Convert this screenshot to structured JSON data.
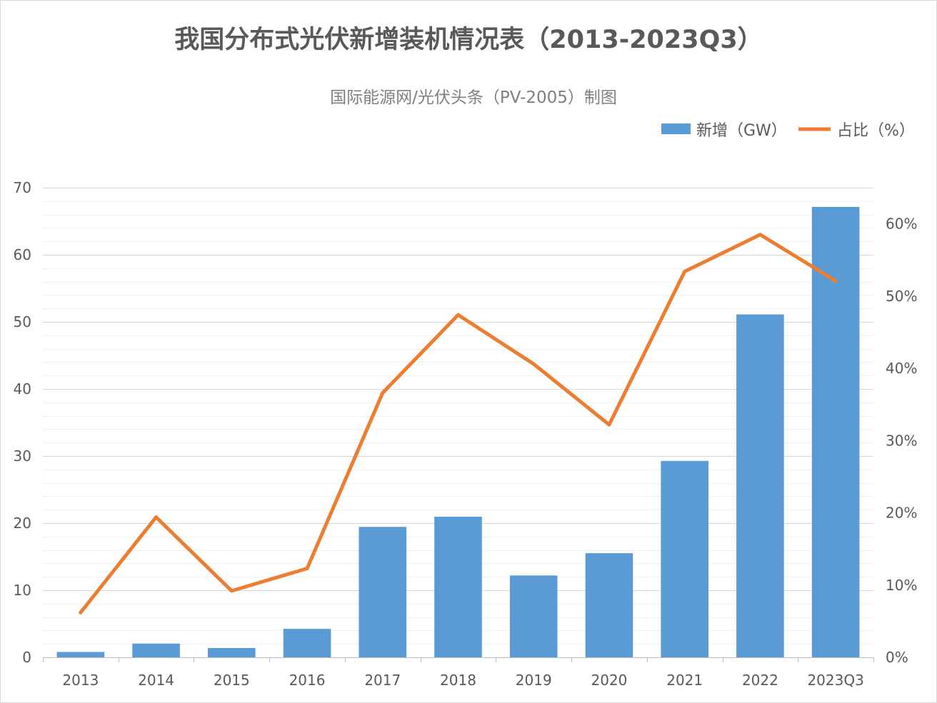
{
  "chart_data": {
    "type": "bar",
    "title": "我国分布式光伏新增装机情况表（2013-2023Q3）",
    "subtitle": "国际能源网/光伏头条（PV-2005）制图",
    "categories": [
      "2013",
      "2014",
      "2015",
      "2016",
      "2017",
      "2018",
      "2019",
      "2020",
      "2021",
      "2022",
      "2023Q3"
    ],
    "series": [
      {
        "name": "新增（GW）",
        "type": "bar",
        "axis": "left",
        "color": "#5B9BD5",
        "values": [
          0.8,
          2.05,
          1.39,
          4.24,
          19.44,
          20.96,
          12.2,
          15.52,
          29.28,
          51.11,
          67.14
        ]
      },
      {
        "name": "占比（%）",
        "type": "line",
        "axis": "right",
        "color": "#ED7D31",
        "values": [
          6.2,
          19.4,
          9.2,
          12.3,
          36.6,
          47.4,
          40.6,
          32.2,
          53.4,
          58.5,
          52.1
        ]
      }
    ],
    "y_left": {
      "range": [
        0,
        70
      ],
      "tick_labels": [
        "0",
        "10",
        "20",
        "30",
        "40",
        "50",
        "60",
        "70"
      ]
    },
    "y_right": {
      "range": [
        0,
        65
      ],
      "tick_labels": [
        "0%",
        "10%",
        "20%",
        "30%",
        "40%",
        "50%",
        "60%"
      ]
    },
    "grid": true,
    "minor_grid": true,
    "legend": "top-right"
  }
}
